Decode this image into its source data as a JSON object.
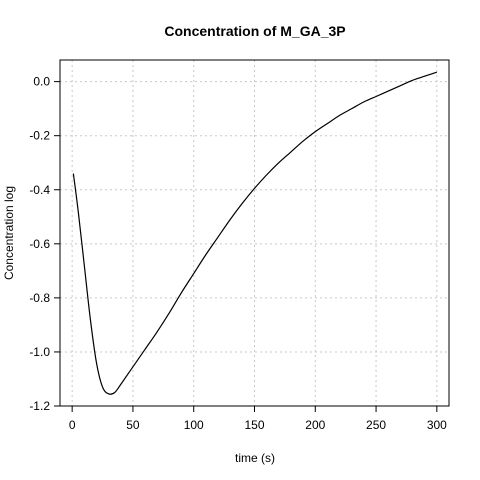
{
  "chart_data": {
    "type": "line",
    "title": "Concentration of M_GA_3P",
    "xlabel": "time (s)",
    "ylabel": "Concentration log",
    "xlim": [
      -10,
      310
    ],
    "ylim": [
      -1.2,
      0.08
    ],
    "x_ticks": [
      0,
      50,
      100,
      150,
      200,
      250,
      300
    ],
    "x_tick_labels": [
      "0",
      "50",
      "100",
      "150",
      "200",
      "250",
      "300"
    ],
    "y_ticks": [
      -1.2,
      -1.0,
      -0.8,
      -0.6,
      -0.4,
      -0.2,
      0.0
    ],
    "y_tick_labels": [
      "-1.2",
      "-1.0",
      "-0.8",
      "-0.6",
      "-0.4",
      "-0.2",
      "0.0"
    ],
    "grid": true,
    "series": [
      {
        "x": [
          1,
          5,
          10,
          15,
          20,
          25,
          30,
          35,
          40,
          50,
          60,
          70,
          80,
          90,
          100,
          110,
          120,
          130,
          140,
          150,
          160,
          170,
          180,
          190,
          200,
          210,
          220,
          230,
          240,
          250,
          260,
          270,
          280,
          290,
          300
        ],
        "y": [
          -0.34,
          -0.48,
          -0.68,
          -0.88,
          -1.04,
          -1.13,
          -1.155,
          -1.15,
          -1.12,
          -1.055,
          -0.99,
          -0.925,
          -0.855,
          -0.78,
          -0.71,
          -0.64,
          -0.575,
          -0.51,
          -0.45,
          -0.395,
          -0.345,
          -0.3,
          -0.26,
          -0.22,
          -0.185,
          -0.155,
          -0.125,
          -0.1,
          -0.075,
          -0.055,
          -0.035,
          -0.015,
          0.005,
          0.02,
          0.035
        ]
      }
    ]
  }
}
